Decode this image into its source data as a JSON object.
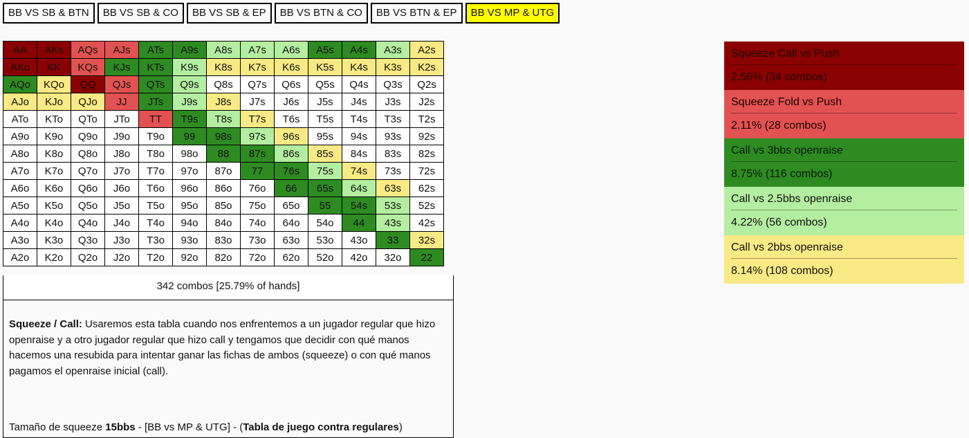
{
  "tabs": [
    {
      "label": "BB VS SB & BTN",
      "active": false
    },
    {
      "label": "BB VS SB & CO",
      "active": false
    },
    {
      "label": "BB VS SB & EP",
      "active": false
    },
    {
      "label": "BB VS BTN & CO",
      "active": false
    },
    {
      "label": "BB VS BTN & EP",
      "active": false
    },
    {
      "label": "BB VS MP & UTG",
      "active": true
    }
  ],
  "colors": {
    "dr": "#8b0000",
    "r": "#e35252",
    "g": "#2e8b22",
    "lg": "#b4eea0",
    "y": "#f8ea84",
    "w": "#ffffff",
    "tab_active": "#ffff00"
  },
  "grid": [
    [
      [
        "AA",
        "dr"
      ],
      [
        "AKs",
        "dr"
      ],
      [
        "AQs",
        "r"
      ],
      [
        "AJs",
        "r"
      ],
      [
        "ATs",
        "g"
      ],
      [
        "A9s",
        "g"
      ],
      [
        "A8s",
        "lg"
      ],
      [
        "A7s",
        "lg"
      ],
      [
        "A6s",
        "lg"
      ],
      [
        "A5s",
        "g"
      ],
      [
        "A4s",
        "g"
      ],
      [
        "A3s",
        "lg"
      ],
      [
        "A2s",
        "y"
      ]
    ],
    [
      [
        "AKo",
        "dr"
      ],
      [
        "KK",
        "dr"
      ],
      [
        "KQs",
        "r"
      ],
      [
        "KJs",
        "g"
      ],
      [
        "KTs",
        "g"
      ],
      [
        "K9s",
        "lg"
      ],
      [
        "K8s",
        "y"
      ],
      [
        "K7s",
        "y"
      ],
      [
        "K6s",
        "y"
      ],
      [
        "K5s",
        "y"
      ],
      [
        "K4s",
        "y"
      ],
      [
        "K3s",
        "y"
      ],
      [
        "K2s",
        "y"
      ]
    ],
    [
      [
        "AQo",
        "g"
      ],
      [
        "KQo",
        "y"
      ],
      [
        "QQ",
        "dr"
      ],
      [
        "QJs",
        "r"
      ],
      [
        "QTs",
        "g"
      ],
      [
        "Q9s",
        "lg"
      ],
      [
        "Q8s",
        "w"
      ],
      [
        "Q7s",
        "w"
      ],
      [
        "Q6s",
        "w"
      ],
      [
        "Q5s",
        "w"
      ],
      [
        "Q4s",
        "w"
      ],
      [
        "Q3s",
        "w"
      ],
      [
        "Q2s",
        "w"
      ]
    ],
    [
      [
        "AJo",
        "y"
      ],
      [
        "KJo",
        "y"
      ],
      [
        "QJo",
        "y"
      ],
      [
        "JJ",
        "r"
      ],
      [
        "JTs",
        "g"
      ],
      [
        "J9s",
        "lg"
      ],
      [
        "J8s",
        "y"
      ],
      [
        "J7s",
        "w"
      ],
      [
        "J6s",
        "w"
      ],
      [
        "J5s",
        "w"
      ],
      [
        "J4s",
        "w"
      ],
      [
        "J3s",
        "w"
      ],
      [
        "J2s",
        "w"
      ]
    ],
    [
      [
        "ATo",
        "w"
      ],
      [
        "KTo",
        "w"
      ],
      [
        "QTo",
        "w"
      ],
      [
        "JTo",
        "w"
      ],
      [
        "TT",
        "r"
      ],
      [
        "T9s",
        "g"
      ],
      [
        "T8s",
        "lg"
      ],
      [
        "T7s",
        "y"
      ],
      [
        "T6s",
        "w"
      ],
      [
        "T5s",
        "w"
      ],
      [
        "T4s",
        "w"
      ],
      [
        "T3s",
        "w"
      ],
      [
        "T2s",
        "w"
      ]
    ],
    [
      [
        "A9o",
        "w"
      ],
      [
        "K9o",
        "w"
      ],
      [
        "Q9o",
        "w"
      ],
      [
        "J9o",
        "w"
      ],
      [
        "T9o",
        "w"
      ],
      [
        "99",
        "g"
      ],
      [
        "98s",
        "g"
      ],
      [
        "97s",
        "lg"
      ],
      [
        "96s",
        "y"
      ],
      [
        "95s",
        "w"
      ],
      [
        "94s",
        "w"
      ],
      [
        "93s",
        "w"
      ],
      [
        "92s",
        "w"
      ]
    ],
    [
      [
        "A8o",
        "w"
      ],
      [
        "K8o",
        "w"
      ],
      [
        "Q8o",
        "w"
      ],
      [
        "J8o",
        "w"
      ],
      [
        "T8o",
        "w"
      ],
      [
        "98o",
        "w"
      ],
      [
        "88",
        "g"
      ],
      [
        "87s",
        "g"
      ],
      [
        "86s",
        "lg"
      ],
      [
        "85s",
        "y"
      ],
      [
        "84s",
        "w"
      ],
      [
        "83s",
        "w"
      ],
      [
        "82s",
        "w"
      ]
    ],
    [
      [
        "A7o",
        "w"
      ],
      [
        "K7o",
        "w"
      ],
      [
        "Q7o",
        "w"
      ],
      [
        "J7o",
        "w"
      ],
      [
        "T7o",
        "w"
      ],
      [
        "97o",
        "w"
      ],
      [
        "87o",
        "w"
      ],
      [
        "77",
        "g"
      ],
      [
        "76s",
        "g"
      ],
      [
        "75s",
        "lg"
      ],
      [
        "74s",
        "y"
      ],
      [
        "73s",
        "w"
      ],
      [
        "72s",
        "w"
      ]
    ],
    [
      [
        "A6o",
        "w"
      ],
      [
        "K6o",
        "w"
      ],
      [
        "Q6o",
        "w"
      ],
      [
        "J6o",
        "w"
      ],
      [
        "T6o",
        "w"
      ],
      [
        "96o",
        "w"
      ],
      [
        "86o",
        "w"
      ],
      [
        "76o",
        "w"
      ],
      [
        "66",
        "g"
      ],
      [
        "65s",
        "g"
      ],
      [
        "64s",
        "lg"
      ],
      [
        "63s",
        "y"
      ],
      [
        "62s",
        "w"
      ]
    ],
    [
      [
        "A5o",
        "w"
      ],
      [
        "K5o",
        "w"
      ],
      [
        "Q5o",
        "w"
      ],
      [
        "J5o",
        "w"
      ],
      [
        "T5o",
        "w"
      ],
      [
        "95o",
        "w"
      ],
      [
        "85o",
        "w"
      ],
      [
        "75o",
        "w"
      ],
      [
        "65o",
        "w"
      ],
      [
        "55",
        "g"
      ],
      [
        "54s",
        "g"
      ],
      [
        "53s",
        "lg"
      ],
      [
        "52s",
        "w"
      ]
    ],
    [
      [
        "A4o",
        "w"
      ],
      [
        "K4o",
        "w"
      ],
      [
        "Q4o",
        "w"
      ],
      [
        "J4o",
        "w"
      ],
      [
        "T4o",
        "w"
      ],
      [
        "94o",
        "w"
      ],
      [
        "84o",
        "w"
      ],
      [
        "74o",
        "w"
      ],
      [
        "64o",
        "w"
      ],
      [
        "54o",
        "w"
      ],
      [
        "44",
        "g"
      ],
      [
        "43s",
        "lg"
      ],
      [
        "42s",
        "w"
      ]
    ],
    [
      [
        "A3o",
        "w"
      ],
      [
        "K3o",
        "w"
      ],
      [
        "Q3o",
        "w"
      ],
      [
        "J3o",
        "w"
      ],
      [
        "T3o",
        "w"
      ],
      [
        "93o",
        "w"
      ],
      [
        "83o",
        "w"
      ],
      [
        "73o",
        "w"
      ],
      [
        "63o",
        "w"
      ],
      [
        "53o",
        "w"
      ],
      [
        "43o",
        "w"
      ],
      [
        "33",
        "g"
      ],
      [
        "32s",
        "y"
      ]
    ],
    [
      [
        "A2o",
        "w"
      ],
      [
        "K2o",
        "w"
      ],
      [
        "Q2o",
        "w"
      ],
      [
        "J2o",
        "w"
      ],
      [
        "T2o",
        "w"
      ],
      [
        "92o",
        "w"
      ],
      [
        "82o",
        "w"
      ],
      [
        "72o",
        "w"
      ],
      [
        "62o",
        "w"
      ],
      [
        "52o",
        "w"
      ],
      [
        "42o",
        "w"
      ],
      [
        "32o",
        "w"
      ],
      [
        "22",
        "g"
      ]
    ]
  ],
  "combos_summary": "342 combos [25.79% of hands]",
  "description": {
    "bold_label": "Squeeze / Call:",
    "text": " Usaremos esta tabla cuando nos enfrentemos a un jugador regular que hizo openraise y a otro jugador regular que hizo call y tengamos que decidir con qué manos hacemos una resubida para intentar ganar las fichas de ambos (squeeze) o con qué manos pagamos el openraise inicial (call).",
    "size_prefix": "Tamaño de squeeze ",
    "size_value": "15bbs",
    "size_middle": " - [BB vs MP & UTG] - (",
    "size_table": "Tabla de juego contra regulares",
    "size_suffix": ")"
  },
  "legend": [
    {
      "title": "Squeeze Call vs Push",
      "value": "2.56%  (34 combos)"
    },
    {
      "title": "Squeeze Fold vs Push",
      "value": "2.11%  (28 combos)"
    },
    {
      "title": "Call vs 3bbs openraise",
      "value": "8.75%  (116 combos)"
    },
    {
      "title": "Call vs 2.5bbs openraise",
      "value": "4.22%  (56 combos)"
    },
    {
      "title": "Call vs 2bbs openraise",
      "value": "8.14%  (108 combos)"
    }
  ]
}
